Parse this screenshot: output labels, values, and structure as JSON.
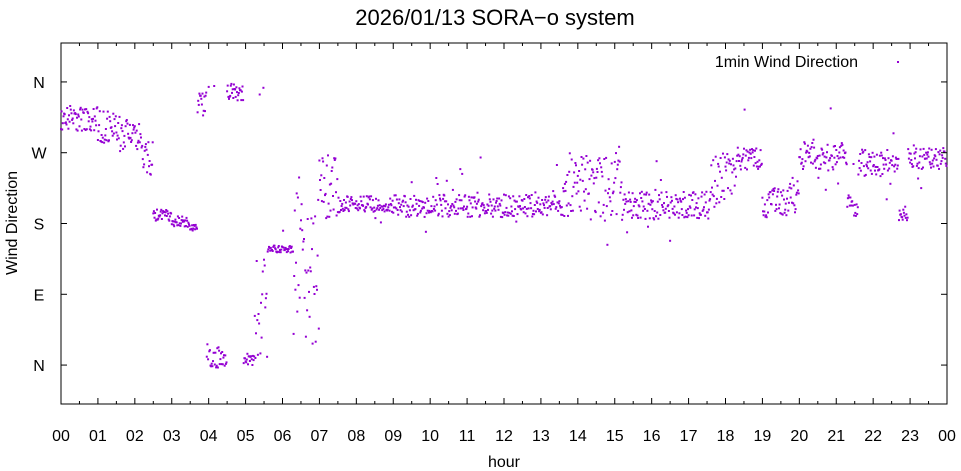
{
  "chart_data": {
    "type": "scatter",
    "title": "2026/01/13 SORA−o system",
    "xlabel": "hour",
    "ylabel": "Wind Direction",
    "xlim": [
      0,
      24
    ],
    "ylim": [
      -0.55,
      4.55
    ],
    "grid": false,
    "legend_position": "top-right",
    "point_color": "#9400d3",
    "x_ticks": [
      0,
      1,
      2,
      3,
      4,
      5,
      6,
      7,
      8,
      9,
      10,
      11,
      12,
      13,
      14,
      15,
      16,
      17,
      18,
      19,
      20,
      21,
      22,
      23,
      24
    ],
    "x_tick_labels": [
      "00",
      "01",
      "02",
      "03",
      "04",
      "05",
      "06",
      "07",
      "08",
      "09",
      "10",
      "11",
      "12",
      "13",
      "14",
      "15",
      "16",
      "17",
      "18",
      "19",
      "20",
      "21",
      "22",
      "23",
      "00"
    ],
    "y_ticks": [
      0,
      1,
      2,
      3,
      4
    ],
    "y_tick_labels": [
      "N",
      "E",
      "S",
      "W",
      "N"
    ],
    "series": [
      {
        "name": "1min Wind Direction",
        "segments": [
          {
            "t0": 0.0,
            "t1": 1.0,
            "center": 3.48,
            "spread": 0.18,
            "scatter_frac": 0.02
          },
          {
            "t0": 1.0,
            "t1": 1.6,
            "center": 3.35,
            "spread": 0.25,
            "scatter_frac": 0.05
          },
          {
            "t0": 1.6,
            "t1": 2.2,
            "center": 3.25,
            "spread": 0.25,
            "scatter_frac": 0.05
          },
          {
            "t0": 2.2,
            "t1": 2.5,
            "center": 2.9,
            "spread": 0.25,
            "scatter_frac": 0.05
          },
          {
            "t0": 2.5,
            "t1": 3.0,
            "center": 2.12,
            "spread": 0.08,
            "scatter_frac": 0.0
          },
          {
            "t0": 3.0,
            "t1": 3.5,
            "center": 2.02,
            "spread": 0.08,
            "scatter_frac": 0.0
          },
          {
            "t0": 3.5,
            "t1": 3.7,
            "center": 1.94,
            "spread": 0.04,
            "scatter_frac": 0.0
          },
          {
            "t0": 3.7,
            "t1": 3.95,
            "center": 3.72,
            "spread": 0.2,
            "scatter_frac": 0.0
          },
          {
            "t0": 3.95,
            "t1": 4.3,
            "center": 0.12,
            "spread": 0.2,
            "scatter_frac": 0.0
          },
          {
            "t0": 4.3,
            "t1": 4.5,
            "center": 0.08,
            "spread": 0.12,
            "scatter_frac": 0.0
          },
          {
            "t0": 4.5,
            "t1": 4.95,
            "center": 3.86,
            "spread": 0.12,
            "scatter_frac": 0.0
          },
          {
            "t0": 4.95,
            "t1": 5.25,
            "center": 0.08,
            "spread": 0.08,
            "scatter_frac": 0.0
          },
          {
            "t0": 5.25,
            "t1": 5.6,
            "center": 0.7,
            "spread": 0.9,
            "scatter_frac": 0.0
          },
          {
            "t0": 5.6,
            "t1": 6.3,
            "center": 1.64,
            "spread": 0.05,
            "scatter_frac": 0.02
          },
          {
            "t0": 6.3,
            "t1": 6.6,
            "center": 1.5,
            "spread": 1.0,
            "scatter_frac": 0.1
          },
          {
            "t0": 6.6,
            "t1": 7.0,
            "center": 1.2,
            "spread": 1.0,
            "scatter_frac": 0.1
          },
          {
            "t0": 7.0,
            "t1": 7.5,
            "center": 2.55,
            "spread": 0.5,
            "scatter_frac": 0.05
          },
          {
            "t0": 7.5,
            "t1": 9.0,
            "center": 2.27,
            "spread": 0.12,
            "scatter_frac": 0.03
          },
          {
            "t0": 9.0,
            "t1": 13.6,
            "center": 2.25,
            "spread": 0.16,
            "scatter_frac": 0.08
          },
          {
            "t0": 13.6,
            "t1": 15.2,
            "center": 2.55,
            "spread": 0.45,
            "scatter_frac": 0.1
          },
          {
            "t0": 15.2,
            "t1": 17.6,
            "center": 2.25,
            "spread": 0.2,
            "scatter_frac": 0.08
          },
          {
            "t0": 17.6,
            "t1": 18.3,
            "center": 2.6,
            "spread": 0.4,
            "scatter_frac": 0.1
          },
          {
            "t0": 18.3,
            "t1": 19.0,
            "center": 2.92,
            "spread": 0.16,
            "scatter_frac": 0.05
          },
          {
            "t0": 19.0,
            "t1": 19.7,
            "center": 2.28,
            "spread": 0.22,
            "scatter_frac": 0.05
          },
          {
            "t0": 19.7,
            "t1": 20.0,
            "center": 2.4,
            "spread": 0.3,
            "scatter_frac": 0.05
          },
          {
            "t0": 20.0,
            "t1": 21.3,
            "center": 2.95,
            "spread": 0.2,
            "scatter_frac": 0.08
          },
          {
            "t0": 21.3,
            "t1": 21.6,
            "center": 2.25,
            "spread": 0.15,
            "scatter_frac": 0.05
          },
          {
            "t0": 21.6,
            "t1": 22.7,
            "center": 2.85,
            "spread": 0.2,
            "scatter_frac": 0.08
          },
          {
            "t0": 22.7,
            "t1": 22.95,
            "center": 2.12,
            "spread": 0.12,
            "scatter_frac": 0.0
          },
          {
            "t0": 22.95,
            "t1": 24.0,
            "center": 2.92,
            "spread": 0.15,
            "scatter_frac": 0.05
          }
        ]
      }
    ]
  }
}
